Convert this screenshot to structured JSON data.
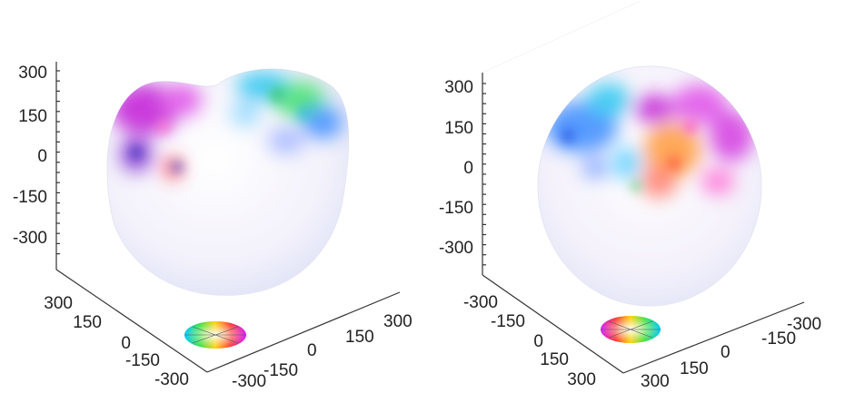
{
  "panels": [
    {
      "id": "left",
      "z_ticks": [
        "300",
        "150",
        "0",
        "-150",
        "-300"
      ],
      "y_ticks": [
        "300",
        "150",
        "0",
        "-150",
        "-300"
      ],
      "x_ticks": [
        "-300",
        "-150",
        "0",
        "150",
        "300"
      ],
      "color_wheel": "hue-disk"
    },
    {
      "id": "right",
      "z_ticks": [
        "300",
        "150",
        "0",
        "-150",
        "-300"
      ],
      "y_ticks": [
        "-300",
        "-150",
        "0",
        "150",
        "300"
      ],
      "x_ticks": [
        "300",
        "150",
        "0",
        "-150",
        "-300"
      ],
      "color_wheel": "hue-disk"
    }
  ],
  "colors": {
    "axis": "#333333",
    "text": "#222222",
    "blob_magenta": "#c21bd6",
    "blob_cyan": "#27c6f0",
    "blob_blue": "#3a5bff",
    "blob_green": "#3fe06a",
    "blob_orange": "#ff9a3c"
  }
}
